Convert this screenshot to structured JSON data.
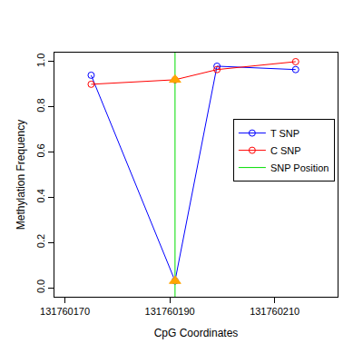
{
  "chart_data": {
    "type": "line",
    "x_label": "CpG Coordinates",
    "y_label": "Methylation Frequency",
    "xlim": [
      131760168,
      131760222
    ],
    "xticks": [
      131760170,
      131760190,
      131760210
    ],
    "ylim": [
      -0.04,
      1.04
    ],
    "yticks": [
      {
        "value": 0,
        "label": "0.0"
      },
      {
        "value": 0.2,
        "label": "0.2"
      },
      {
        "value": 0.4,
        "label": "0.4"
      },
      {
        "value": 0.6,
        "label": "0.6"
      },
      {
        "value": 0.8,
        "label": "0.8"
      },
      {
        "value": 1,
        "label": "1.0"
      }
    ],
    "legend": "right",
    "series": [
      {
        "name": "T SNP",
        "color": "blue",
        "type": "line",
        "marker": "circle-open",
        "x": [
          131760175,
          131760191,
          131760199,
          131760214
        ],
        "values": [
          0.94,
          0.03,
          0.98,
          0.965
        ]
      },
      {
        "name": "C SNP",
        "color": "red",
        "type": "line",
        "marker": "circle-open",
        "x": [
          131760175,
          131760191,
          131760199,
          131760214
        ],
        "values": [
          0.9,
          0.92,
          0.965,
          1.0
        ]
      },
      {
        "name": "SNP Position",
        "color": "#00dd00",
        "type": "vline",
        "x": [
          131760191
        ]
      },
      {
        "color": "orange",
        "type": "scatter",
        "marker": "triangle",
        "x": [
          131760191,
          131760191
        ],
        "values": [
          0.03,
          0.92
        ]
      }
    ]
  }
}
